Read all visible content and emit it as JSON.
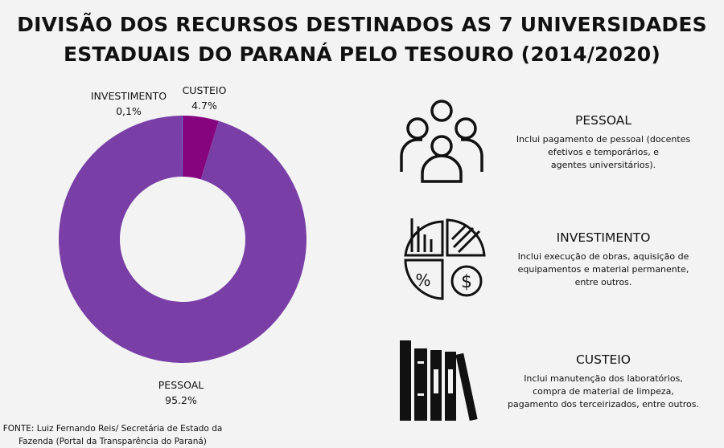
{
  "title_line1": "DIVISÃO DOS RECURSOS DESTINADOS AS 7 UNIVERSIDADES",
  "title_line2": "ESTADUAIS DO PARANÁ PELO TESOURO (2014/2020)",
  "chart_data": {
    "type": "pie",
    "variant": "donut",
    "categories": [
      "CUSTEIO",
      "PESSOAL",
      "INVESTIMENTO"
    ],
    "values": [
      4.7,
      95.2,
      0.1
    ],
    "value_labels": [
      "4.7%",
      "95.2%",
      "0,1%"
    ],
    "colors": [
      "#86047e",
      "#793fa6",
      "#5b6fd0"
    ]
  },
  "source": "FONTE: Luiz Fernando Reis/ Secretária de Estado da Fazenda (Portal da Transparência do Paraná)",
  "sections": [
    {
      "title": "PESSOAL",
      "text": "Inclui  pagamento de pessoal (docentes\nefetivos e temporários, e\nagentes universitários).",
      "icon": "people-group-icon"
    },
    {
      "title": "INVESTIMENTO",
      "text": "Inclui execução de obras, aquisição de\nequipamentos e material permanente,\nentre outros.",
      "icon": "investment-chart-icon"
    },
    {
      "title": "CUSTEIO",
      "text": "Inclui manutenção dos laboratórios,\ncompra de material de limpeza,\npagamento dos terceirizados, entre outros.",
      "icon": "books-icon"
    }
  ]
}
